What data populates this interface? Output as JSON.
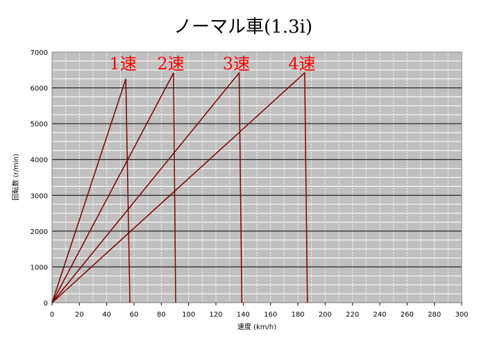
{
  "chart_data": {
    "type": "line",
    "title": "ノーマル車(1.3i)",
    "xlabel": "速度 (km/h)",
    "ylabel": "回転数 (r/min)",
    "xlim": [
      0,
      300
    ],
    "ylim": [
      0,
      7000
    ],
    "xticks": [
      0,
      20,
      40,
      60,
      80,
      100,
      120,
      140,
      160,
      180,
      200,
      220,
      240,
      260,
      280,
      300
    ],
    "yticks": [
      0,
      1000,
      2000,
      3000,
      4000,
      5000,
      6000,
      7000
    ],
    "grid": true,
    "background_color": "#c0c0c0",
    "line_color": "#800000",
    "label_color": "#ff0000",
    "series": [
      {
        "name": "1速",
        "points": [
          [
            0,
            0
          ],
          [
            54,
            6250
          ],
          [
            57,
            0
          ]
        ]
      },
      {
        "name": "2速",
        "points": [
          [
            0,
            0
          ],
          [
            89,
            6420
          ],
          [
            90.5,
            0
          ]
        ]
      },
      {
        "name": "3速",
        "points": [
          [
            0,
            0
          ],
          [
            137,
            6420
          ],
          [
            139,
            0
          ]
        ]
      },
      {
        "name": "4速",
        "points": [
          [
            0,
            0
          ],
          [
            185,
            6420
          ],
          [
            187,
            0
          ]
        ]
      }
    ]
  }
}
